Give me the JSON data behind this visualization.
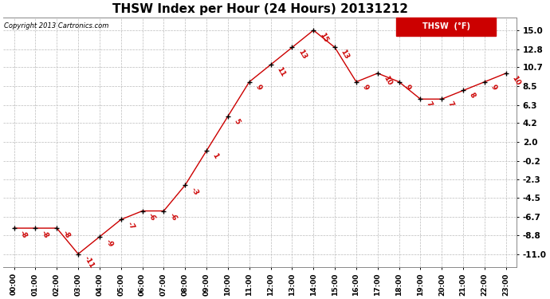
{
  "title": "THSW Index per Hour (24 Hours) 20131212",
  "copyright": "Copyright 2013 Cartronics.com",
  "legend_label": "THSW  (°F)",
  "hours": [
    "00:00",
    "01:00",
    "02:00",
    "03:00",
    "04:00",
    "05:00",
    "06:00",
    "07:00",
    "08:00",
    "09:00",
    "10:00",
    "11:00",
    "12:00",
    "13:00",
    "14:00",
    "15:00",
    "16:00",
    "17:00",
    "18:00",
    "19:00",
    "20:00",
    "21:00",
    "22:00",
    "23:00"
  ],
  "values": [
    -8,
    -8,
    -8,
    -11,
    -9,
    -7,
    -6,
    -6,
    -3,
    1,
    5,
    9,
    11,
    13,
    15,
    13,
    9,
    10,
    9,
    7,
    7,
    8,
    9,
    10
  ],
  "line_color": "#cc0000",
  "marker_color": "#000000",
  "label_color": "#cc0000",
  "background_color": "#ffffff",
  "grid_color": "#bbbbbb",
  "yticks": [
    15.0,
    12.8,
    10.7,
    8.5,
    6.3,
    4.2,
    2.0,
    -0.2,
    -2.3,
    -4.5,
    -6.7,
    -8.8,
    -11.0
  ],
  "ylim": [
    -12.5,
    16.5
  ],
  "title_fontsize": 11,
  "legend_bg": "#cc0000",
  "legend_text_color": "#ffffff"
}
